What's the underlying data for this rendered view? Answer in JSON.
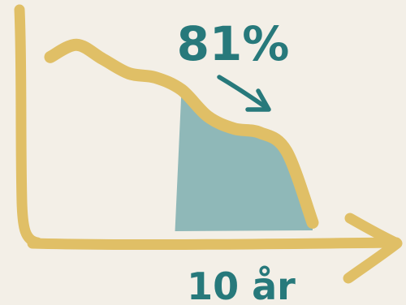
{
  "chart_data": {
    "type": "area",
    "title": "",
    "xlabel": "10 år",
    "ylabel": "",
    "annotation": "81%",
    "x": [
      0,
      1,
      2,
      3,
      4,
      5,
      6,
      7,
      8,
      9,
      10
    ],
    "series": [
      {
        "values": [
          84,
          90,
          83,
          76,
          74,
          68,
          55,
          49,
          47,
          38,
          3
        ]
      }
    ],
    "highlight": {
      "value_label": "81%",
      "x_range": [
        5,
        10
      ]
    },
    "grid": false,
    "legend": "none",
    "colors": {
      "axis": "#e0bf66",
      "line": "#e0bf66",
      "fill": "#8fb8b8",
      "text": "#27797b",
      "background": "#f3efe7"
    }
  }
}
